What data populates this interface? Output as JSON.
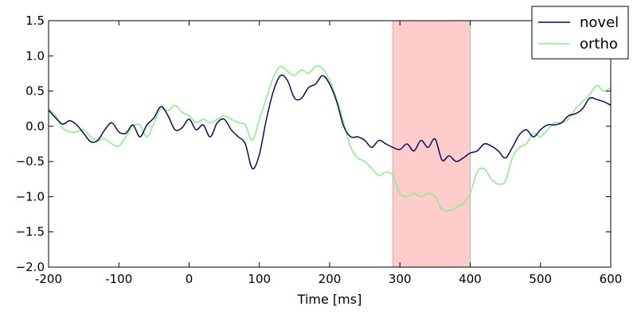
{
  "chart_data": {
    "type": "line",
    "title": "",
    "xlabel": "Time [ms]",
    "ylabel": "",
    "xlim": [
      -200,
      600
    ],
    "ylim": [
      -2.0,
      1.5
    ],
    "xticks": [
      -200,
      -100,
      0,
      100,
      200,
      300,
      400,
      500,
      600
    ],
    "xtick_labels": [
      "-200",
      "-100",
      "0",
      "100",
      "200",
      "300",
      "400",
      "500",
      "600"
    ],
    "yticks": [
      -2.0,
      -1.5,
      -1.0,
      -0.5,
      0.0,
      0.5,
      1.0,
      1.5
    ],
    "ytick_labels": [
      "−2.0",
      "−1.5",
      "−1.0",
      "−0.5",
      "0.0",
      "0.5",
      "1.0",
      "1.5"
    ],
    "grid": false,
    "legend_position": "top-right",
    "highlight_region": {
      "x_start": 290,
      "x_end": 400,
      "color": "#ffcccc"
    },
    "series": [
      {
        "name": "novel",
        "color": "#0a0a5a",
        "points": [
          [
            -200,
            0.23
          ],
          [
            -190,
            0.12
          ],
          [
            -180,
            0.03
          ],
          [
            -170,
            0.08
          ],
          [
            -160,
            0.02
          ],
          [
            -150,
            -0.1
          ],
          [
            -140,
            -0.22
          ],
          [
            -130,
            -0.2
          ],
          [
            -120,
            -0.05
          ],
          [
            -110,
            0.05
          ],
          [
            -100,
            -0.08
          ],
          [
            -90,
            -0.1
          ],
          [
            -80,
            0.02
          ],
          [
            -70,
            -0.15
          ],
          [
            -60,
            0.02
          ],
          [
            -50,
            0.12
          ],
          [
            -40,
            0.28
          ],
          [
            -30,
            0.15
          ],
          [
            -20,
            -0.05
          ],
          [
            -10,
            -0.02
          ],
          [
            0,
            0.1
          ],
          [
            10,
            -0.05
          ],
          [
            20,
            0.02
          ],
          [
            30,
            -0.15
          ],
          [
            40,
            0.05
          ],
          [
            50,
            0.1
          ],
          [
            60,
            -0.05
          ],
          [
            70,
            -0.15
          ],
          [
            80,
            -0.25
          ],
          [
            90,
            -0.6
          ],
          [
            100,
            -0.4
          ],
          [
            110,
            0.1
          ],
          [
            120,
            0.5
          ],
          [
            130,
            0.72
          ],
          [
            140,
            0.65
          ],
          [
            150,
            0.4
          ],
          [
            160,
            0.4
          ],
          [
            170,
            0.55
          ],
          [
            180,
            0.6
          ],
          [
            190,
            0.72
          ],
          [
            200,
            0.6
          ],
          [
            210,
            0.35
          ],
          [
            220,
            0.0
          ],
          [
            230,
            -0.15
          ],
          [
            240,
            -0.15
          ],
          [
            250,
            -0.2
          ],
          [
            260,
            -0.3
          ],
          [
            270,
            -0.2
          ],
          [
            280,
            -0.25
          ],
          [
            290,
            -0.3
          ],
          [
            300,
            -0.33
          ],
          [
            310,
            -0.25
          ],
          [
            320,
            -0.35
          ],
          [
            330,
            -0.2
          ],
          [
            340,
            -0.3
          ],
          [
            350,
            -0.18
          ],
          [
            360,
            -0.48
          ],
          [
            370,
            -0.42
          ],
          [
            380,
            -0.5
          ],
          [
            390,
            -0.45
          ],
          [
            400,
            -0.38
          ],
          [
            410,
            -0.35
          ],
          [
            420,
            -0.25
          ],
          [
            430,
            -0.28
          ],
          [
            440,
            -0.35
          ],
          [
            450,
            -0.45
          ],
          [
            460,
            -0.3
          ],
          [
            470,
            -0.12
          ],
          [
            480,
            -0.05
          ],
          [
            490,
            -0.15
          ],
          [
            500,
            -0.05
          ],
          [
            510,
            0.02
          ],
          [
            520,
            0.02
          ],
          [
            530,
            0.05
          ],
          [
            540,
            0.15
          ],
          [
            550,
            0.18
          ],
          [
            560,
            0.25
          ],
          [
            570,
            0.4
          ],
          [
            580,
            0.38
          ],
          [
            590,
            0.35
          ],
          [
            600,
            0.3
          ]
        ]
      },
      {
        "name": "ortho",
        "color": "#88ee88",
        "points": [
          [
            -200,
            0.25
          ],
          [
            -190,
            0.15
          ],
          [
            -180,
            -0.02
          ],
          [
            -170,
            -0.08
          ],
          [
            -160,
            -0.08
          ],
          [
            -150,
            -0.05
          ],
          [
            -140,
            -0.15
          ],
          [
            -130,
            -0.2
          ],
          [
            -120,
            -0.18
          ],
          [
            -110,
            -0.25
          ],
          [
            -100,
            -0.28
          ],
          [
            -90,
            -0.15
          ],
          [
            -80,
            0.0
          ],
          [
            -70,
            0.02
          ],
          [
            -60,
            -0.15
          ],
          [
            -50,
            0.05
          ],
          [
            -40,
            0.25
          ],
          [
            -30,
            0.22
          ],
          [
            -20,
            0.3
          ],
          [
            -10,
            0.2
          ],
          [
            0,
            0.15
          ],
          [
            10,
            0.05
          ],
          [
            20,
            0.1
          ],
          [
            30,
            0.05
          ],
          [
            40,
            0.1
          ],
          [
            50,
            0.15
          ],
          [
            60,
            0.1
          ],
          [
            70,
            0.05
          ],
          [
            80,
            0.02
          ],
          [
            90,
            -0.2
          ],
          [
            100,
            0.1
          ],
          [
            110,
            0.4
          ],
          [
            120,
            0.7
          ],
          [
            130,
            0.85
          ],
          [
            140,
            0.78
          ],
          [
            150,
            0.72
          ],
          [
            160,
            0.8
          ],
          [
            170,
            0.75
          ],
          [
            180,
            0.85
          ],
          [
            190,
            0.82
          ],
          [
            200,
            0.65
          ],
          [
            210,
            0.4
          ],
          [
            220,
            0.05
          ],
          [
            230,
            -0.3
          ],
          [
            240,
            -0.45
          ],
          [
            250,
            -0.5
          ],
          [
            260,
            -0.6
          ],
          [
            270,
            -0.7
          ],
          [
            280,
            -0.65
          ],
          [
            290,
            -0.7
          ],
          [
            300,
            -0.95
          ],
          [
            310,
            -1.0
          ],
          [
            320,
            -0.95
          ],
          [
            330,
            -1.0
          ],
          [
            340,
            -0.95
          ],
          [
            350,
            -1.0
          ],
          [
            360,
            -1.18
          ],
          [
            370,
            -1.2
          ],
          [
            380,
            -1.15
          ],
          [
            390,
            -1.1
          ],
          [
            400,
            -0.95
          ],
          [
            410,
            -0.65
          ],
          [
            420,
            -0.6
          ],
          [
            430,
            -0.75
          ],
          [
            440,
            -0.82
          ],
          [
            450,
            -0.78
          ],
          [
            460,
            -0.45
          ],
          [
            470,
            -0.3
          ],
          [
            480,
            -0.25
          ],
          [
            490,
            -0.1
          ],
          [
            500,
            -0.15
          ],
          [
            510,
            -0.05
          ],
          [
            520,
            0.05
          ],
          [
            530,
            0.05
          ],
          [
            540,
            0.1
          ],
          [
            550,
            0.25
          ],
          [
            560,
            0.35
          ],
          [
            570,
            0.45
          ],
          [
            580,
            0.58
          ],
          [
            590,
            0.5
          ],
          [
            600,
            0.55
          ]
        ]
      }
    ]
  }
}
